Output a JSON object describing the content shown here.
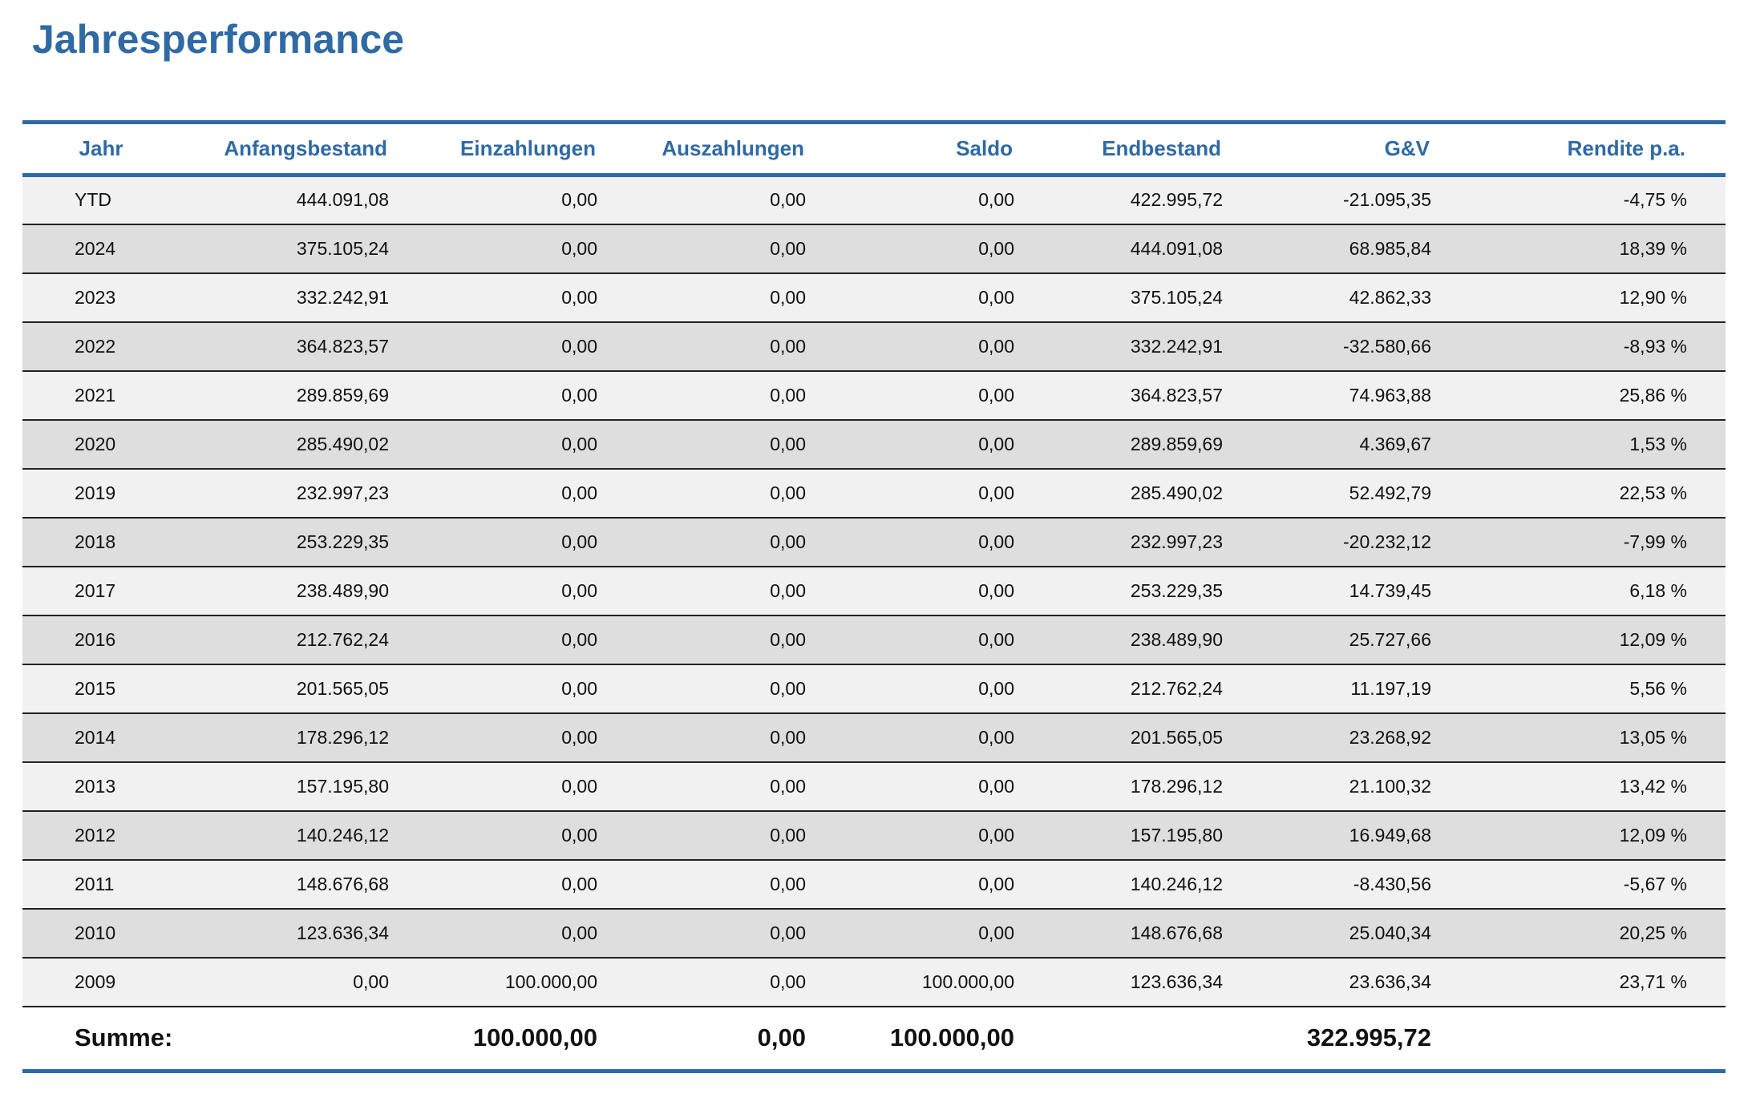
{
  "title": "Jahresperformance",
  "columns": [
    "Jahr",
    "Anfangsbestand",
    "Einzahlungen",
    "Auszahlungen",
    "Saldo",
    "Endbestand",
    "G&V",
    "Rendite p.a."
  ],
  "rows": [
    {
      "year": "YTD",
      "start": "444.091,08",
      "in": "0,00",
      "out": "0,00",
      "saldo": "0,00",
      "end": "422.995,72",
      "gv": "-21.095,35",
      "rendite": "-4,75 %"
    },
    {
      "year": "2024",
      "start": "375.105,24",
      "in": "0,00",
      "out": "0,00",
      "saldo": "0,00",
      "end": "444.091,08",
      "gv": "68.985,84",
      "rendite": "18,39 %"
    },
    {
      "year": "2023",
      "start": "332.242,91",
      "in": "0,00",
      "out": "0,00",
      "saldo": "0,00",
      "end": "375.105,24",
      "gv": "42.862,33",
      "rendite": "12,90 %"
    },
    {
      "year": "2022",
      "start": "364.823,57",
      "in": "0,00",
      "out": "0,00",
      "saldo": "0,00",
      "end": "332.242,91",
      "gv": "-32.580,66",
      "rendite": "-8,93 %"
    },
    {
      "year": "2021",
      "start": "289.859,69",
      "in": "0,00",
      "out": "0,00",
      "saldo": "0,00",
      "end": "364.823,57",
      "gv": "74.963,88",
      "rendite": "25,86 %"
    },
    {
      "year": "2020",
      "start": "285.490,02",
      "in": "0,00",
      "out": "0,00",
      "saldo": "0,00",
      "end": "289.859,69",
      "gv": "4.369,67",
      "rendite": "1,53 %"
    },
    {
      "year": "2019",
      "start": "232.997,23",
      "in": "0,00",
      "out": "0,00",
      "saldo": "0,00",
      "end": "285.490,02",
      "gv": "52.492,79",
      "rendite": "22,53 %"
    },
    {
      "year": "2018",
      "start": "253.229,35",
      "in": "0,00",
      "out": "0,00",
      "saldo": "0,00",
      "end": "232.997,23",
      "gv": "-20.232,12",
      "rendite": "-7,99 %"
    },
    {
      "year": "2017",
      "start": "238.489,90",
      "in": "0,00",
      "out": "0,00",
      "saldo": "0,00",
      "end": "253.229,35",
      "gv": "14.739,45",
      "rendite": "6,18 %"
    },
    {
      "year": "2016",
      "start": "212.762,24",
      "in": "0,00",
      "out": "0,00",
      "saldo": "0,00",
      "end": "238.489,90",
      "gv": "25.727,66",
      "rendite": "12,09 %"
    },
    {
      "year": "2015",
      "start": "201.565,05",
      "in": "0,00",
      "out": "0,00",
      "saldo": "0,00",
      "end": "212.762,24",
      "gv": "11.197,19",
      "rendite": "5,56 %"
    },
    {
      "year": "2014",
      "start": "178.296,12",
      "in": "0,00",
      "out": "0,00",
      "saldo": "0,00",
      "end": "201.565,05",
      "gv": "23.268,92",
      "rendite": "13,05 %"
    },
    {
      "year": "2013",
      "start": "157.195,80",
      "in": "0,00",
      "out": "0,00",
      "saldo": "0,00",
      "end": "178.296,12",
      "gv": "21.100,32",
      "rendite": "13,42 %"
    },
    {
      "year": "2012",
      "start": "140.246,12",
      "in": "0,00",
      "out": "0,00",
      "saldo": "0,00",
      "end": "157.195,80",
      "gv": "16.949,68",
      "rendite": "12,09 %"
    },
    {
      "year": "2011",
      "start": "148.676,68",
      "in": "0,00",
      "out": "0,00",
      "saldo": "0,00",
      "end": "140.246,12",
      "gv": "-8.430,56",
      "rendite": "-5,67 %"
    },
    {
      "year": "2010",
      "start": "123.636,34",
      "in": "0,00",
      "out": "0,00",
      "saldo": "0,00",
      "end": "148.676,68",
      "gv": "25.040,34",
      "rendite": "20,25 %"
    },
    {
      "year": "2009",
      "start": "0,00",
      "in": "100.000,00",
      "out": "0,00",
      "saldo": "100.000,00",
      "end": "123.636,34",
      "gv": "23.636,34",
      "rendite": "23,71 %"
    }
  ],
  "summary": {
    "label": "Summe:",
    "in": "100.000,00",
    "out": "0,00",
    "saldo": "100.000,00",
    "gv": "322.995,72"
  },
  "colors": {
    "accent": "#2f6aa5",
    "row_light": "#f1f1f1",
    "row_dark": "#dededf"
  }
}
